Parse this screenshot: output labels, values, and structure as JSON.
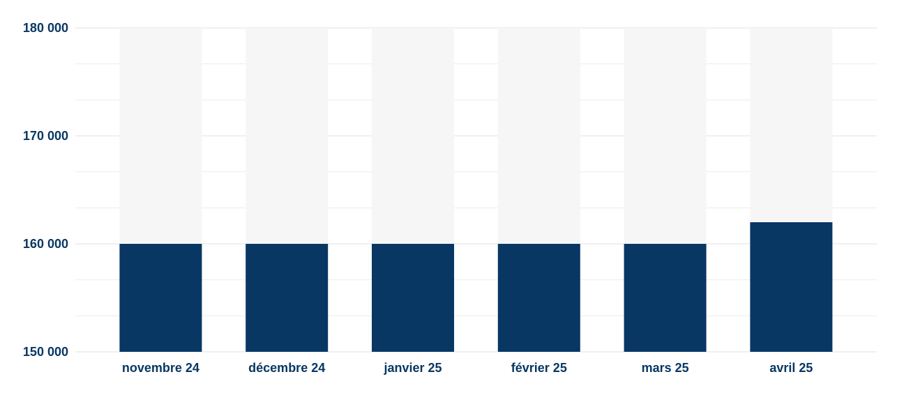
{
  "chart_data": {
    "type": "bar",
    "title": "",
    "xlabel": "",
    "ylabel": "",
    "categories": [
      "novembre 24",
      "décembre 24",
      "janvier 25",
      "février 25",
      "mars 25",
      "avril 25"
    ],
    "values": [
      160000,
      160000,
      160000,
      160000,
      160000,
      162000
    ],
    "ylim": [
      150000,
      180000
    ],
    "yticks": [
      150000,
      160000,
      170000,
      180000
    ],
    "ytick_labels": [
      "150 000",
      "160 000",
      "170 000",
      "180 000"
    ],
    "minor_gridlines": true,
    "bar_background": true,
    "grid": true,
    "legend": "none",
    "colors": {
      "bar": "#083763",
      "bar_background": "#f6f6f6",
      "grid": "#e2e2e2",
      "text": "#083763"
    }
  }
}
